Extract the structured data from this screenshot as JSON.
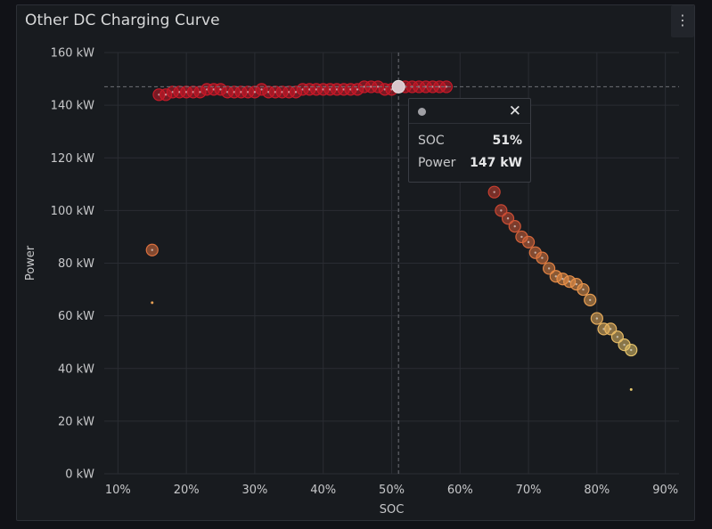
{
  "panel": {
    "title": "Other DC Charging Curve",
    "menu_icon": "⋮"
  },
  "tooltip": {
    "rows": [
      {
        "label": "SOC",
        "value": "51%"
      },
      {
        "label": "Power",
        "value": "147 kW"
      }
    ],
    "close": "✕"
  },
  "chart_data": {
    "type": "scatter",
    "title": "Other DC Charging Curve",
    "xlabel": "SOC",
    "ylabel": "Power",
    "xlim": [
      8,
      92
    ],
    "ylim": [
      0,
      160
    ],
    "x_ticks": [
      "10%",
      "20%",
      "30%",
      "40%",
      "50%",
      "60%",
      "70%",
      "80%",
      "90%"
    ],
    "y_ticks": [
      "0 kW",
      "20 kW",
      "40 kW",
      "60 kW",
      "80 kW",
      "100 kW",
      "120 kW",
      "140 kW",
      "160 kW"
    ],
    "grid": true,
    "crosshair": {
      "x": 51,
      "y": 147
    },
    "points": [
      {
        "x": 15,
        "y": 85,
        "size": "large"
      },
      {
        "x": 15,
        "y": 65,
        "size": "tiny"
      },
      {
        "x": 16,
        "y": 144
      },
      {
        "x": 17,
        "y": 144
      },
      {
        "x": 18,
        "y": 145
      },
      {
        "x": 19,
        "y": 145
      },
      {
        "x": 20,
        "y": 145
      },
      {
        "x": 21,
        "y": 145
      },
      {
        "x": 22,
        "y": 145
      },
      {
        "x": 23,
        "y": 146
      },
      {
        "x": 24,
        "y": 146
      },
      {
        "x": 25,
        "y": 146
      },
      {
        "x": 26,
        "y": 145
      },
      {
        "x": 27,
        "y": 145
      },
      {
        "x": 28,
        "y": 145
      },
      {
        "x": 29,
        "y": 145
      },
      {
        "x": 30,
        "y": 145
      },
      {
        "x": 31,
        "y": 146
      },
      {
        "x": 32,
        "y": 145
      },
      {
        "x": 33,
        "y": 145
      },
      {
        "x": 34,
        "y": 145
      },
      {
        "x": 35,
        "y": 145
      },
      {
        "x": 36,
        "y": 145
      },
      {
        "x": 37,
        "y": 146
      },
      {
        "x": 38,
        "y": 146
      },
      {
        "x": 39,
        "y": 146
      },
      {
        "x": 40,
        "y": 146
      },
      {
        "x": 41,
        "y": 146
      },
      {
        "x": 42,
        "y": 146
      },
      {
        "x": 43,
        "y": 146
      },
      {
        "x": 44,
        "y": 146
      },
      {
        "x": 45,
        "y": 146
      },
      {
        "x": 46,
        "y": 147
      },
      {
        "x": 47,
        "y": 147
      },
      {
        "x": 48,
        "y": 147
      },
      {
        "x": 49,
        "y": 146
      },
      {
        "x": 50,
        "y": 146
      },
      {
        "x": 51,
        "y": 147
      },
      {
        "x": 52,
        "y": 147
      },
      {
        "x": 53,
        "y": 147
      },
      {
        "x": 54,
        "y": 147
      },
      {
        "x": 55,
        "y": 147
      },
      {
        "x": 56,
        "y": 147
      },
      {
        "x": 57,
        "y": 147
      },
      {
        "x": 58,
        "y": 147
      },
      {
        "x": 65,
        "y": 107
      },
      {
        "x": 66,
        "y": 100
      },
      {
        "x": 67,
        "y": 97
      },
      {
        "x": 68,
        "y": 94
      },
      {
        "x": 69,
        "y": 90
      },
      {
        "x": 70,
        "y": 88
      },
      {
        "x": 71,
        "y": 84
      },
      {
        "x": 72,
        "y": 82
      },
      {
        "x": 73,
        "y": 78
      },
      {
        "x": 74,
        "y": 75
      },
      {
        "x": 75,
        "y": 74
      },
      {
        "x": 76,
        "y": 73
      },
      {
        "x": 77,
        "y": 72
      },
      {
        "x": 78,
        "y": 70
      },
      {
        "x": 79,
        "y": 66
      },
      {
        "x": 80,
        "y": 59
      },
      {
        "x": 81,
        "y": 55
      },
      {
        "x": 82,
        "y": 55
      },
      {
        "x": 83,
        "y": 52
      },
      {
        "x": 84,
        "y": 49
      },
      {
        "x": 85,
        "y": 47
      },
      {
        "x": 85,
        "y": 32,
        "size": "tiny"
      }
    ]
  }
}
